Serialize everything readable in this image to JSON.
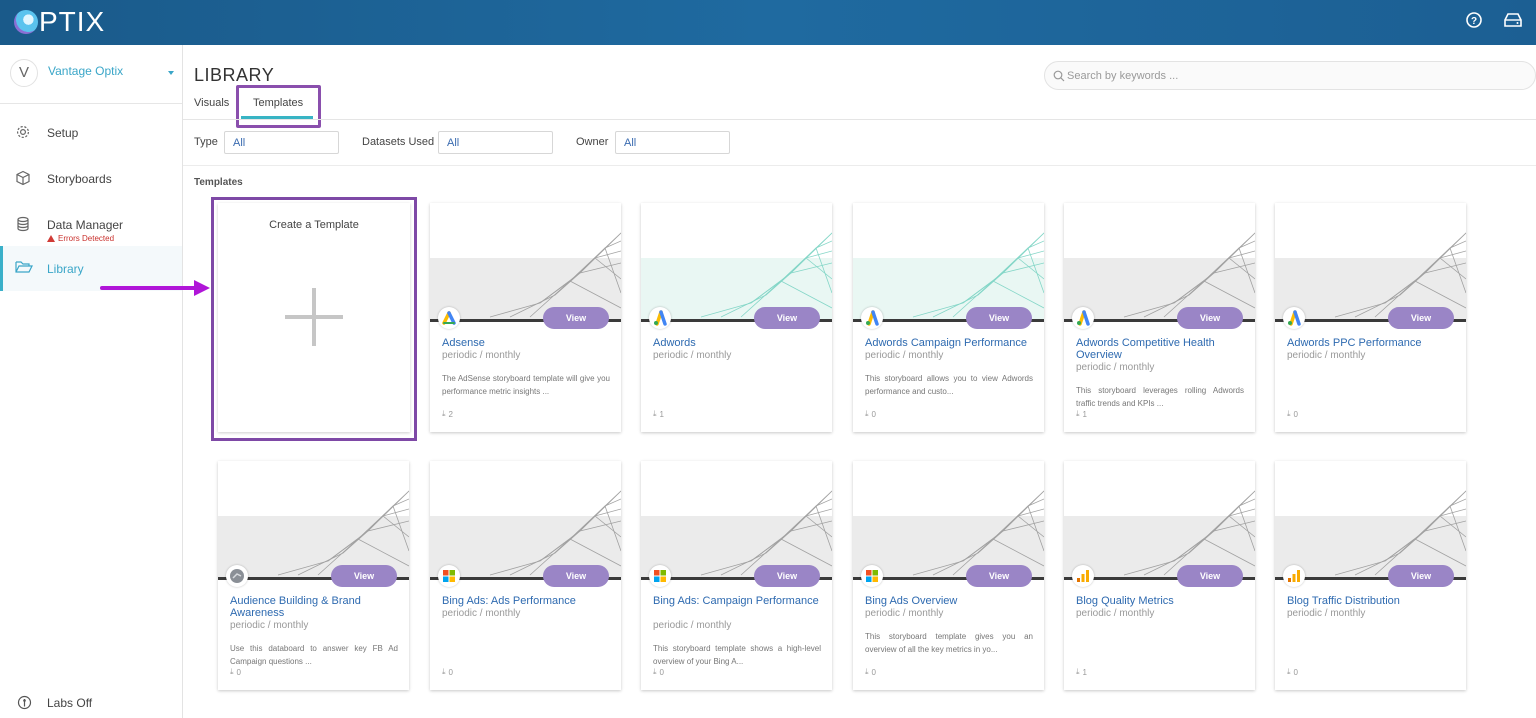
{
  "header": {
    "brand": "PTIX",
    "help_icon": "help-circle-icon",
    "storage_icon": "hard-drive-icon"
  },
  "sidebar": {
    "org_initial": "V",
    "org_name": "Vantage Optix",
    "items": [
      {
        "label": "Setup",
        "icon": "gear-icon"
      },
      {
        "label": "Storyboards",
        "icon": "cube-icon"
      },
      {
        "label": "Data Manager",
        "icon": "database-icon",
        "error": "Errors Detected"
      },
      {
        "label": "Library",
        "icon": "folder-open-icon",
        "active": true
      }
    ],
    "labs_label": "Labs Off"
  },
  "main": {
    "title": "LIBRARY",
    "tabs": [
      {
        "label": "Visuals"
      },
      {
        "label": "Templates",
        "active": true
      }
    ],
    "search": {
      "placeholder": "Search by keywords ..."
    },
    "filters": [
      {
        "label": "Type",
        "value": "All"
      },
      {
        "label": "Datasets Used",
        "value": "All"
      },
      {
        "label": "Owner",
        "value": "All"
      }
    ],
    "section_title": "Templates",
    "create_label": "Create a Template",
    "view_label": "View",
    "cards": [
      {
        "title": "Adsense",
        "sub": "periodic  /  monthly",
        "desc": "The AdSense storyboard template will give you performance metric insights ...",
        "downloads": "2",
        "source": "adsense"
      },
      {
        "title": "Adwords",
        "sub": "periodic  /  monthly",
        "desc": "",
        "downloads": "1",
        "source": "adwords"
      },
      {
        "title": "Adwords Campaign Performance",
        "sub": "periodic  /  monthly",
        "desc": "This storyboard allows you to view Adwords performance and custo...",
        "downloads": "0",
        "source": "adwords"
      },
      {
        "title": "Adwords Competitive Health Overview",
        "sub": "periodic  /  monthly",
        "desc": "This storyboard leverages rolling Adwords traffic trends and KPIs ...",
        "downloads": "1",
        "source": "adwords"
      },
      {
        "title": "Adwords PPC Performance",
        "sub": "periodic  /  monthly",
        "desc": "",
        "downloads": "0",
        "source": "adwords"
      },
      {
        "title": "Audience Building & Brand Awareness",
        "sub": "periodic  /  monthly",
        "desc": "Use this databoard to answer key FB Ad Campaign questions ...",
        "downloads": "0",
        "source": "generic"
      },
      {
        "title": "Bing Ads: Ads Performance",
        "sub": "periodic  /  monthly",
        "desc": "",
        "downloads": "0",
        "source": "bing"
      },
      {
        "title": "Bing Ads: Campaign Performance",
        "sub": "periodic  /  monthly",
        "desc": "This storyboard template shows a high-level overview of your Bing A...",
        "downloads": "0",
        "source": "bing"
      },
      {
        "title": "Bing Ads Overview",
        "sub": "periodic  /  monthly",
        "desc": "This storyboard template gives you an overview of all the key metrics in yo...",
        "downloads": "0",
        "source": "bing"
      },
      {
        "title": "Blog Quality Metrics",
        "sub": "periodic  /  monthly",
        "desc": "",
        "downloads": "1",
        "source": "analytics"
      },
      {
        "title": "Blog Traffic Distribution",
        "sub": "periodic  /  monthly",
        "desc": "",
        "downloads": "0",
        "source": "analytics"
      }
    ]
  }
}
